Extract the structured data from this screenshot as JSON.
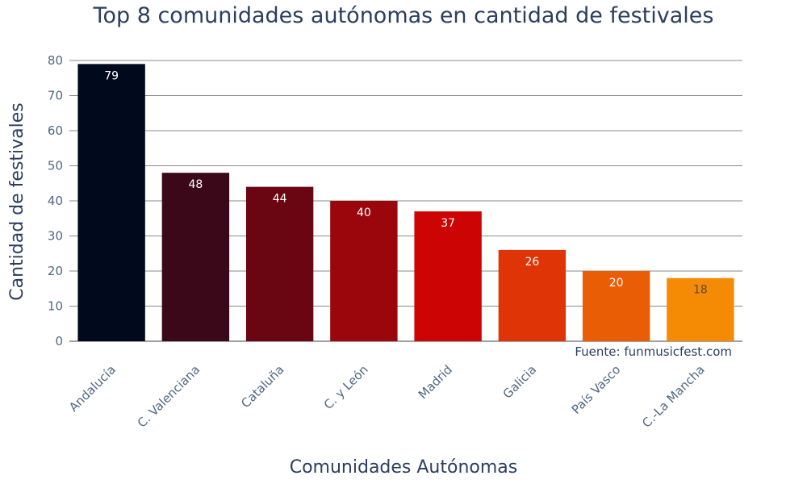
{
  "chart_data": {
    "type": "bar",
    "title": "Top 8 comunidades autónomas en cantidad de festivales",
    "xlabel": "Comunidades Autónomas",
    "ylabel": "Cantidad de festivales",
    "categories": [
      "Andalucía",
      "C. Valenciana",
      "Cataluña",
      "C. y León",
      "Madrid",
      "Galicia",
      "País Vasco",
      "C.-La Mancha"
    ],
    "values": [
      79,
      48,
      44,
      40,
      37,
      26,
      20,
      18
    ],
    "colors": [
      "#000a1c",
      "#3a0818",
      "#6a0612",
      "#9a060c",
      "#cc0404",
      "#df3406",
      "#e95e05",
      "#f58a05"
    ],
    "label_colors": [
      "#ffffff",
      "#ffffff",
      "#ffffff",
      "#ffffff",
      "#ffffff",
      "#ffffff",
      "#ffffff",
      "#5a4a3a"
    ],
    "ylim": [
      0,
      80
    ],
    "yticks": [
      0,
      10,
      20,
      30,
      40,
      50,
      60,
      70,
      80
    ],
    "grid": true,
    "annotation": "Fuente: funmusicfest.com"
  }
}
